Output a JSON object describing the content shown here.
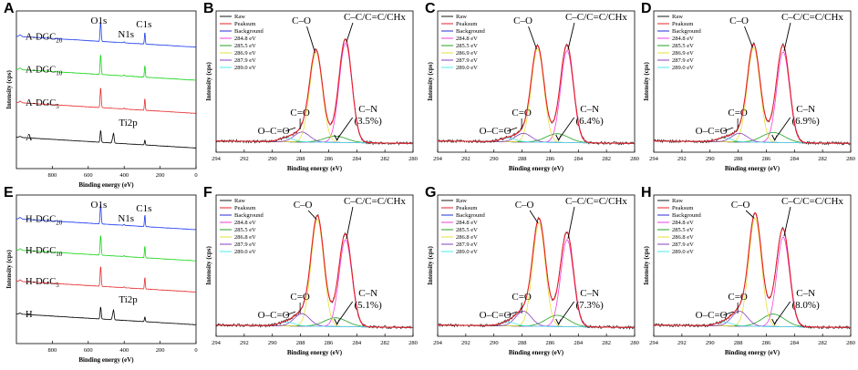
{
  "chart_data": [
    {
      "id": "A",
      "type": "line",
      "letter": "A",
      "title": "",
      "xlabel": "Binding energy (eV)",
      "ylabel": "Intensity (cps)",
      "xlim": [
        1000,
        0
      ],
      "xticks": [
        800,
        600,
        400,
        200,
        0
      ],
      "series": [
        {
          "name": "A-DGC20",
          "label_main": "A-DGC",
          "label_sub": "20",
          "color": "#1f3df0"
        },
        {
          "name": "A-DGC10",
          "label_main": "A-DGC",
          "label_sub": "10",
          "color": "#19d419"
        },
        {
          "name": "A-DGC5",
          "label_main": "A-DGC",
          "label_sub": "5",
          "color": "#e62e2e"
        },
        {
          "name": "A",
          "label_main": "A",
          "label_sub": "",
          "color": "#000000"
        }
      ],
      "peaks": [
        {
          "label": "O1s",
          "be": 531
        },
        {
          "label": "N1s",
          "be": 400
        },
        {
          "label": "C1s",
          "be": 285
        },
        {
          "label": "Ti2p",
          "be": 459
        }
      ]
    },
    {
      "id": "E",
      "type": "line",
      "letter": "E",
      "title": "",
      "xlabel": "Binding energy (eV)",
      "ylabel": "Intensity (cps)",
      "xlim": [
        1000,
        0
      ],
      "xticks": [
        800,
        600,
        400,
        200,
        0
      ],
      "series": [
        {
          "name": "H-DGC20",
          "label_main": "H-DGC",
          "label_sub": "20",
          "color": "#1f3df0"
        },
        {
          "name": "H-DGC10",
          "label_main": "H-DGC",
          "label_sub": "10",
          "color": "#19d419"
        },
        {
          "name": "H-DGC5",
          "label_main": "H-DGC",
          "label_sub": "5",
          "color": "#e62e2e"
        },
        {
          "name": "H",
          "label_main": "H",
          "label_sub": "",
          "color": "#000000"
        }
      ],
      "peaks": [
        {
          "label": "O1s",
          "be": 531
        },
        {
          "label": "N1s",
          "be": 400
        },
        {
          "label": "C1s",
          "be": 285
        },
        {
          "label": "Ti2p",
          "be": 459
        }
      ]
    },
    {
      "id": "B",
      "type": "line",
      "letter": "B",
      "xlabel": "Binding energy (eV)",
      "ylabel": "Intensity (cps)",
      "xlim": [
        294,
        280
      ],
      "xticks": [
        294,
        292,
        290,
        288,
        286,
        284,
        282,
        280
      ],
      "components": [
        {
          "be": 284.8,
          "amp": 0.8
        },
        {
          "be": 285.5,
          "amp": 0.05
        },
        {
          "be": 286.9,
          "amp": 0.72
        },
        {
          "be": 287.9,
          "amp": 0.08
        },
        {
          "be": 289.0,
          "amp": 0.03
        }
      ],
      "annotations": {
        "cc": "C–C/C=C/CHx",
        "co": "C–O",
        "ceo": "C=O",
        "oceo": "O–C=O",
        "cn": "C–N",
        "cn_pct": "(3.5%)"
      }
    },
    {
      "id": "C",
      "type": "line",
      "letter": "C",
      "xlabel": "Binding energy (eV)",
      "ylabel": "Intensity (cps)",
      "xlim": [
        294,
        280
      ],
      "xticks": [
        294,
        292,
        290,
        288,
        286,
        284,
        282,
        280
      ],
      "components": [
        {
          "be": 284.8,
          "amp": 0.74
        },
        {
          "be": 285.5,
          "amp": 0.07
        },
        {
          "be": 286.9,
          "amp": 0.75
        },
        {
          "be": 287.9,
          "amp": 0.07
        },
        {
          "be": 289.0,
          "amp": 0.03
        }
      ],
      "annotations": {
        "cc": "C–C/C=C/CHx",
        "co": "C–O",
        "ceo": "C=O",
        "oceo": "O–C=O",
        "cn": "C–N",
        "cn_pct": "(6.4%)"
      }
    },
    {
      "id": "D",
      "type": "line",
      "letter": "D",
      "xlabel": "Binding energy (eV)",
      "ylabel": "Intensity (cps)",
      "xlim": [
        294,
        280
      ],
      "xticks": [
        294,
        292,
        290,
        288,
        286,
        284,
        282,
        280
      ],
      "components": [
        {
          "be": 284.8,
          "amp": 0.73
        },
        {
          "be": 285.5,
          "amp": 0.08
        },
        {
          "be": 286.9,
          "amp": 0.76
        },
        {
          "be": 287.9,
          "amp": 0.07
        },
        {
          "be": 289.0,
          "amp": 0.03
        }
      ],
      "annotations": {
        "cc": "C–C/C=C/CHx",
        "co": "C–O",
        "ceo": "C=O",
        "oceo": "O–C=O",
        "cn": "C–N",
        "cn_pct": "(6.9%)"
      }
    },
    {
      "id": "F",
      "type": "line",
      "letter": "F",
      "xlabel": "Binding energy (eV)",
      "ylabel": "Intensity (cps)",
      "xlim": [
        294,
        280
      ],
      "xticks": [
        294,
        292,
        290,
        288,
        286,
        284,
        282,
        280
      ],
      "components": [
        {
          "be": 284.8,
          "amp": 0.7
        },
        {
          "be": 285.5,
          "amp": 0.07
        },
        {
          "be": 286.8,
          "amp": 0.86
        },
        {
          "be": 287.9,
          "amp": 0.1
        },
        {
          "be": 289.0,
          "amp": 0.03
        }
      ],
      "annotations": {
        "cc": "C–C/C=C/CHx",
        "co": "C–O",
        "ceo": "C=O",
        "oceo": "O–C=O",
        "cn": "C–N",
        "cn_pct": "(5.1%)"
      }
    },
    {
      "id": "G",
      "type": "line",
      "letter": "G",
      "xlabel": "Binding energy (eV)",
      "ylabel": "Intensity (cps)",
      "xlim": [
        294,
        280
      ],
      "xticks": [
        294,
        292,
        290,
        288,
        286,
        284,
        282,
        280
      ],
      "components": [
        {
          "be": 284.8,
          "amp": 0.7
        },
        {
          "be": 285.5,
          "amp": 0.09
        },
        {
          "be": 286.8,
          "amp": 0.83
        },
        {
          "be": 287.9,
          "amp": 0.12
        },
        {
          "be": 289.0,
          "amp": 0.03
        }
      ],
      "annotations": {
        "cc": "C–C/C=C/CHx",
        "co": "C–O",
        "ceo": "C=O",
        "oceo": "O–C=O",
        "cn": "C–N",
        "cn_pct": "(7.3%)"
      }
    },
    {
      "id": "H",
      "type": "line",
      "letter": "H",
      "xlabel": "Binding energy (eV)",
      "ylabel": "Intensity (cps)",
      "xlim": [
        294,
        280
      ],
      "xticks": [
        294,
        292,
        290,
        288,
        286,
        284,
        282,
        280
      ],
      "components": [
        {
          "be": 284.8,
          "amp": 0.72
        },
        {
          "be": 285.5,
          "amp": 0.1
        },
        {
          "be": 286.8,
          "amp": 0.87
        },
        {
          "be": 287.9,
          "amp": 0.12
        },
        {
          "be": 289.0,
          "amp": 0.03
        }
      ],
      "annotations": {
        "cc": "C–C/C=C/CHx",
        "co": "C–O",
        "ceo": "C=O",
        "oceo": "O–C=O",
        "cn": "C–N",
        "cn_pct": "(8.0%)"
      }
    }
  ],
  "legend_top": [
    {
      "label": "Raw",
      "color": "#1a1a1a"
    },
    {
      "label": "Peaksum",
      "color": "#e8202a"
    },
    {
      "label": "Background",
      "color": "#2a2ad6"
    },
    {
      "label": "284.8 eV",
      "color": "#ee3fe0"
    }
  ],
  "legend_bc": [
    {
      "label": "285.5 eV",
      "color": "#20a020"
    },
    {
      "label": "286.9 eV",
      "color": "#e6df3a"
    },
    {
      "label": "287.9 eV",
      "color": "#8a3fc0"
    },
    {
      "label": "289.0 eV",
      "color": "#4fe8ee"
    }
  ],
  "legend_fh": [
    {
      "label": "285.5 eV",
      "color": "#20a020"
    },
    {
      "label": "286.8 eV",
      "color": "#e6df3a"
    },
    {
      "label": "287.9 eV",
      "color": "#8a3fc0"
    },
    {
      "label": "289.0 eV",
      "color": "#4fe8ee"
    }
  ]
}
